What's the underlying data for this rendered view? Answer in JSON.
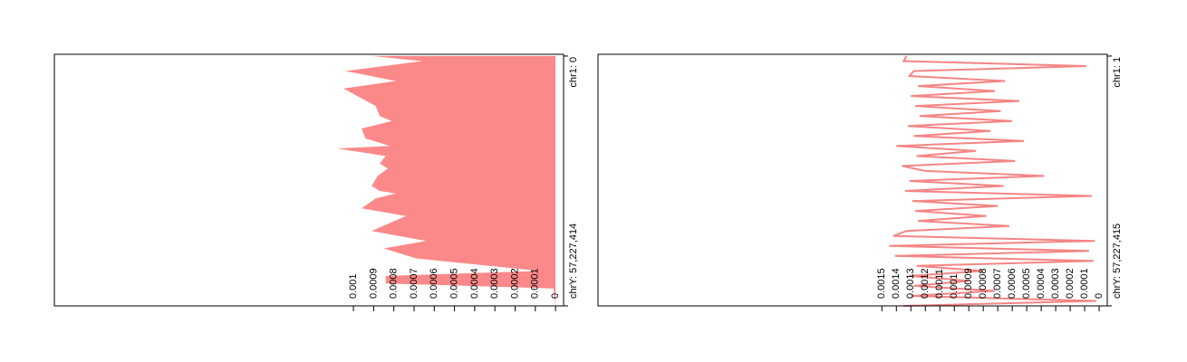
{
  "chart_data": [
    {
      "type": "area",
      "color": "#fb8989",
      "x": [
        0,
        0.02,
        0.06,
        0.1,
        0.13,
        0.2,
        0.24,
        0.26,
        0.29,
        0.33,
        0.36,
        0.37,
        0.4,
        0.43,
        0.45,
        0.48,
        0.52,
        0.54,
        0.55,
        0.57,
        0.61,
        0.64,
        0.7,
        0.74,
        0.77,
        0.81,
        0.86,
        0.88,
        0.91,
        0.93,
        1
      ],
      "values": [
        0.00091,
        0.00066,
        0.00104,
        0.00079,
        0.00105,
        0.00089,
        0.00087,
        0.00081,
        0.00096,
        0.00094,
        0.00082,
        0.00108,
        0.00084,
        0.00087,
        0.00083,
        0.00088,
        0.00091,
        0.00087,
        0.00079,
        0.00089,
        0.00096,
        0.00074,
        0.00091,
        0.00064,
        0.00085,
        0.00069,
        8e-05,
        0.00084,
        0.00084,
        1e-05,
        0
      ],
      "xlim": [
        -0.007,
        1
      ],
      "xticks": [
        {
          "value": 0,
          "label": "chr1: 0"
        },
        {
          "value": 1,
          "label": "chrY: 57,227,414"
        }
      ],
      "ylim": [
        -4e-05,
        0.00248
      ],
      "yticks": [
        0,
        0.0001,
        0.0002,
        0.0003,
        0.0004,
        0.0005,
        0.0006,
        0.0007,
        0.0008,
        0.0009,
        0.001
      ]
    },
    {
      "type": "line",
      "color": "#f48585",
      "x": [
        0,
        0.02,
        0.04,
        0.06,
        0.08,
        0.1,
        0.12,
        0.14,
        0.16,
        0.18,
        0.2,
        0.22,
        0.24,
        0.26,
        0.28,
        0.3,
        0.32,
        0.34,
        0.36,
        0.38,
        0.4,
        0.42,
        0.44,
        0.46,
        0.48,
        0.5,
        0.52,
        0.54,
        0.56,
        0.58,
        0.6,
        0.62,
        0.64,
        0.66,
        0.68,
        0.7,
        0.72,
        0.74,
        0.76,
        0.78,
        0.8,
        0.82,
        0.84,
        0.86,
        0.88,
        0.9,
        0.92,
        0.94,
        0.96,
        0.98,
        1
      ],
      "values": [
        0.00133,
        0.00135,
        9e-05,
        0.00128,
        0.00131,
        0.00065,
        0.00125,
        0.00072,
        0.0013,
        0.00055,
        0.00127,
        0.00068,
        0.00124,
        0.0006,
        0.00132,
        0.00075,
        0.00128,
        0.00052,
        0.0014,
        0.00085,
        0.00126,
        0.00058,
        0.00136,
        0.0012,
        0.00038,
        0.00131,
        0.00066,
        0.00134,
        5e-05,
        0.00129,
        0.0007,
        0.00127,
        0.00078,
        0.00125,
        0.00062,
        0.00133,
        0.00142,
        3e-05,
        0.00145,
        7e-05,
        0.00141,
        4e-05,
        0.00126,
        0.0008,
        0.00131,
        0.0009,
        0.00128,
        0.00072,
        0.0013,
        2e-05,
        0.00135
      ],
      "xlim": [
        -0.007,
        1
      ],
      "xticks": [
        {
          "value": 0,
          "label": "chr1: 1"
        },
        {
          "value": 1,
          "label": "chrY: 57,227,415"
        }
      ],
      "ylim": [
        -5.6e-05,
        0.00346
      ],
      "yticks": [
        0,
        0.0001,
        0.0002,
        0.0003,
        0.0004,
        0.0005,
        0.0006,
        0.0007,
        0.0008,
        0.0009,
        0.001,
        0.0011,
        0.0012,
        0.0013,
        0.0014,
        0.0015
      ]
    }
  ]
}
